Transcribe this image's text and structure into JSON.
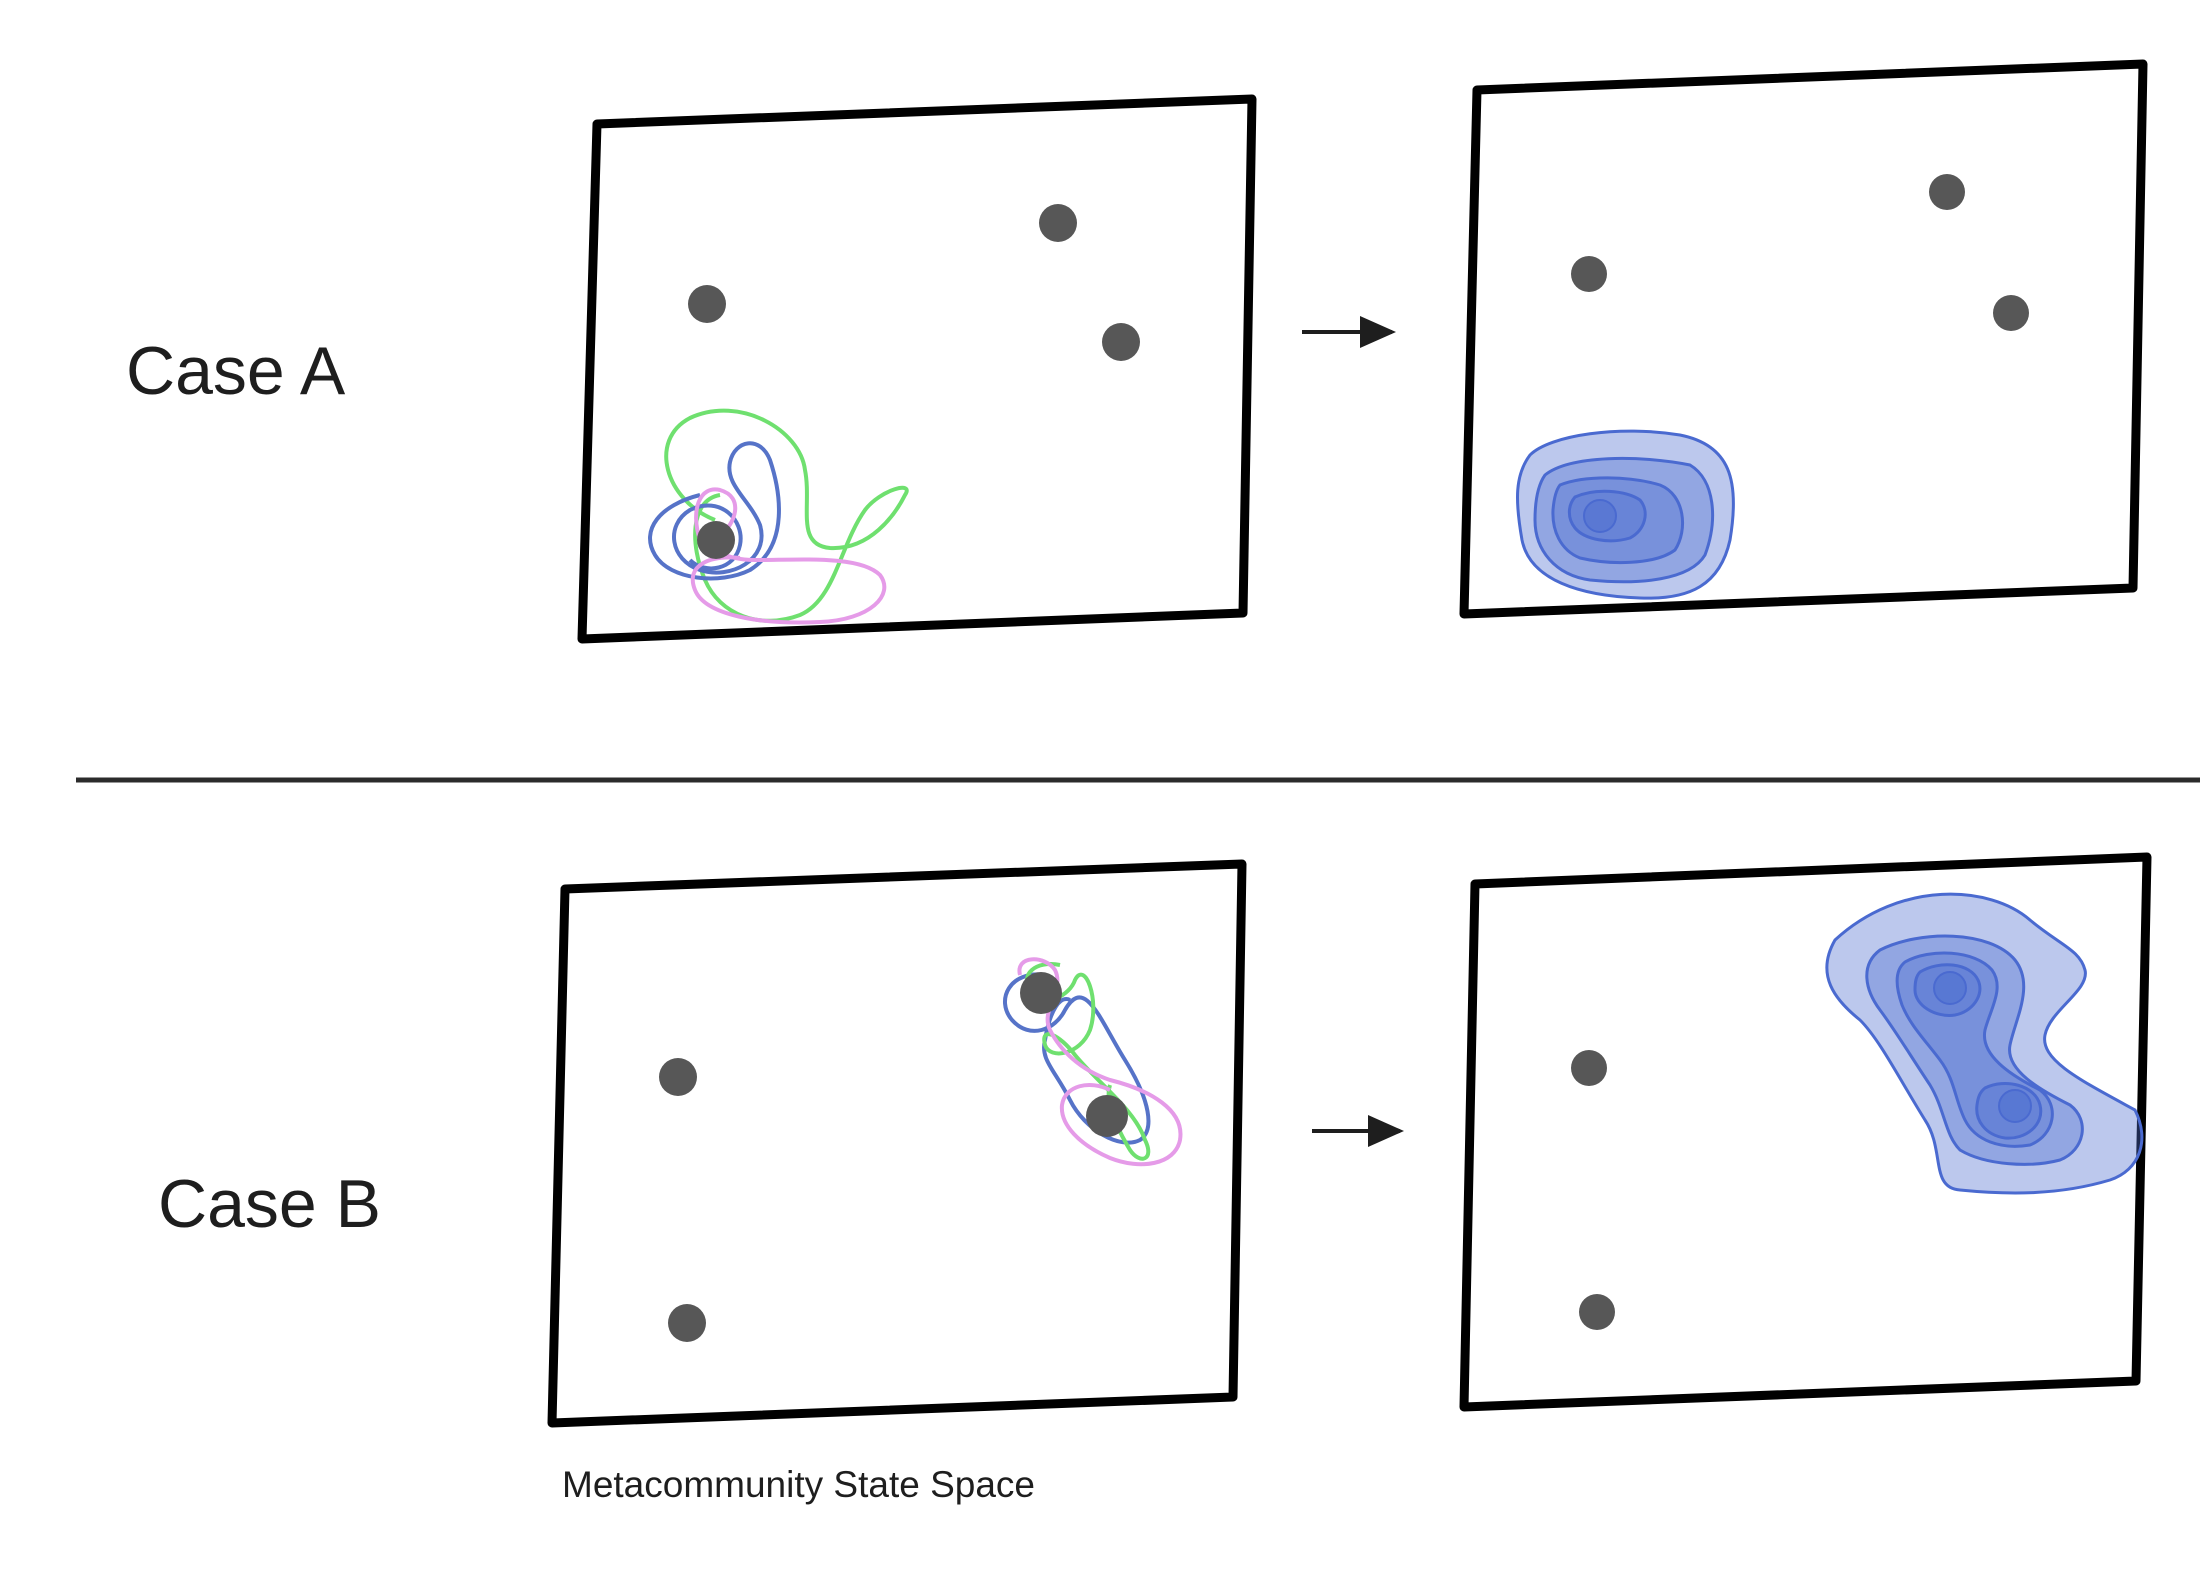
{
  "case_a": {
    "label": "Case A"
  },
  "case_b": {
    "label": "Case B"
  },
  "caption": "Metacommunity State Space",
  "colors": {
    "frame": "#000000",
    "attractor": "#575757",
    "trajectory_green": "#6fe06f",
    "trajectory_blue": "#5673c8",
    "trajectory_pink": "#e59be8",
    "density_fill": "#4f6fd0",
    "density_stroke": "#4a6ad0",
    "divider": "#2b2b2b"
  },
  "icons": [
    "right-arrow-icon"
  ]
}
